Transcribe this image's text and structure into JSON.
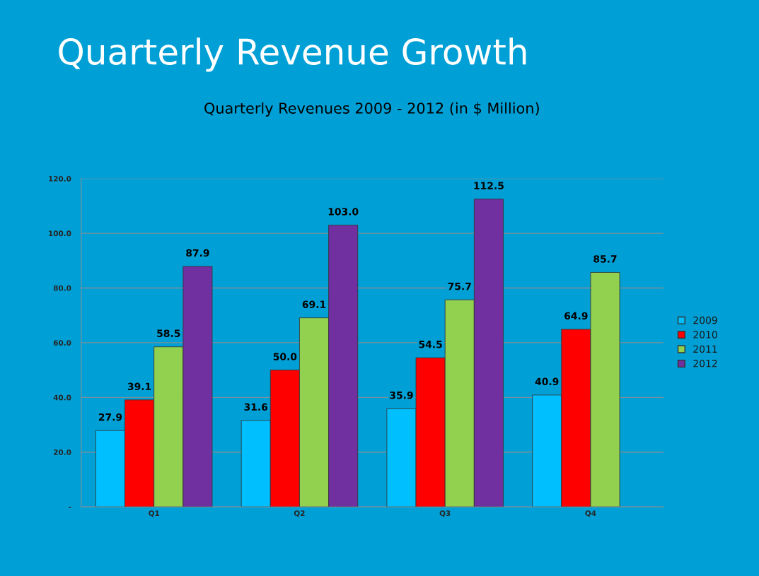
{
  "chart_data": {
    "type": "bar",
    "title": "Quarterly Revenue Growth",
    "subtitle": "Quarterly Revenues 2009 - 2012 (in $ Million)",
    "categories": [
      "Q1",
      "Q2",
      "Q3",
      "Q4"
    ],
    "series": [
      {
        "name": "2009",
        "color": "#00bfff",
        "values": [
          27.9,
          31.6,
          35.9,
          40.9
        ],
        "value_labels": [
          "27.9",
          "31.6",
          "35.9",
          "40.9"
        ]
      },
      {
        "name": "2010",
        "color": "#ff0000",
        "values": [
          39.1,
          50.0,
          54.5,
          64.9
        ],
        "value_labels": [
          "39.1",
          "50.0",
          "54.5",
          "64.9"
        ]
      },
      {
        "name": "2011",
        "color": "#92d050",
        "values": [
          58.5,
          69.1,
          75.7,
          85.7
        ],
        "value_labels": [
          "58.5",
          "69.1",
          "75.7",
          "85.7"
        ]
      },
      {
        "name": "2012",
        "color": "#7030a0",
        "values": [
          87.9,
          103.0,
          112.5,
          null
        ],
        "value_labels": [
          "87.9",
          "103.0",
          "112.5",
          null
        ]
      }
    ],
    "ylim": [
      0,
      120
    ],
    "yticks": [
      {
        "value": 0,
        "label": "-"
      },
      {
        "value": 20,
        "label": "20.0"
      },
      {
        "value": 40,
        "label": "40.0"
      },
      {
        "value": 60,
        "label": "60.0"
      },
      {
        "value": 80,
        "label": "80.0"
      },
      {
        "value": 100,
        "label": "100.0"
      },
      {
        "value": 120,
        "label": "120.0"
      }
    ],
    "grid": "y",
    "legend": "right"
  }
}
